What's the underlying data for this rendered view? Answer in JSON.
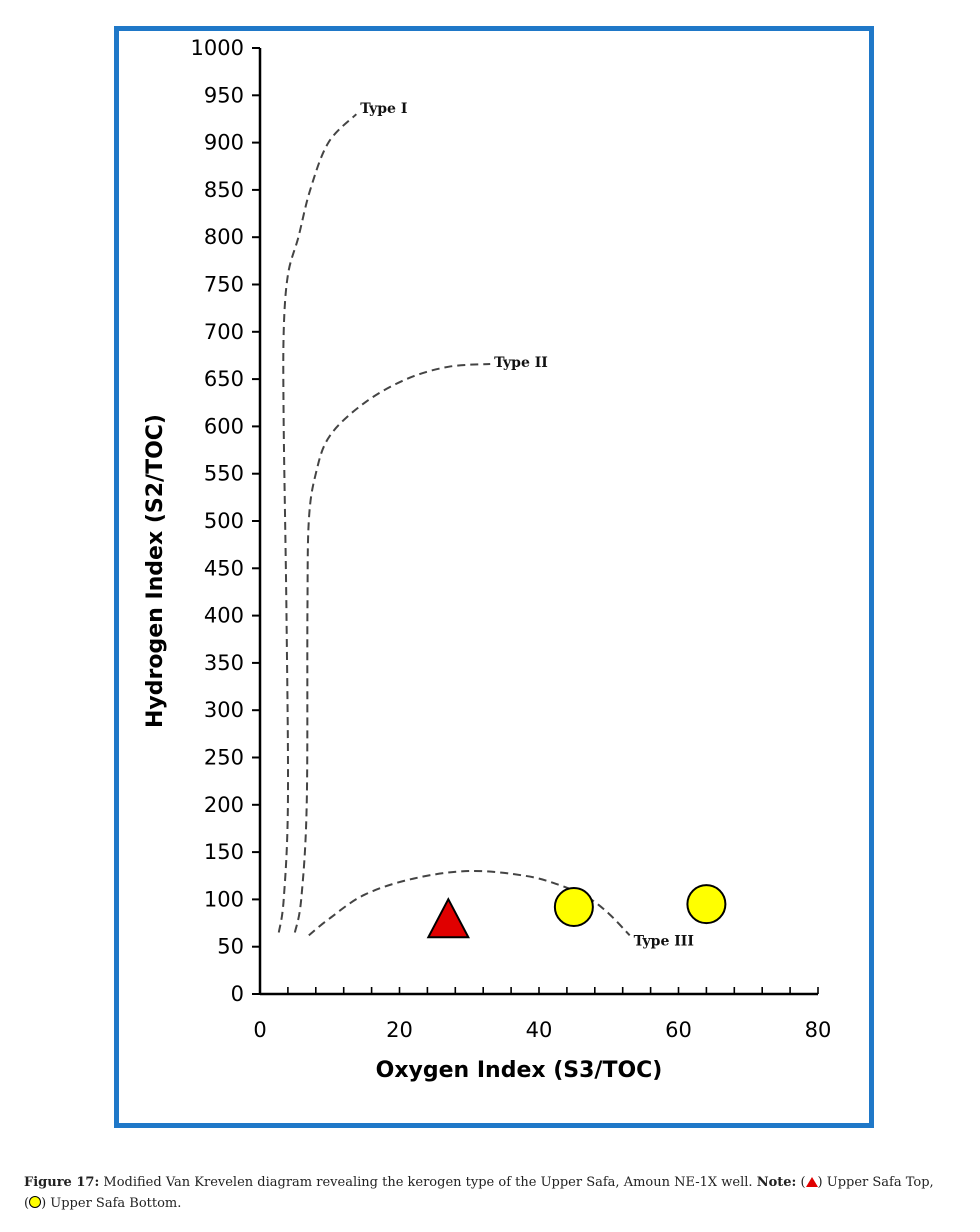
{
  "chart_data": {
    "type": "scatter",
    "xlabel": "Oxygen Index (S3/TOC)",
    "ylabel": "Hydrogen Index (S2/TOC)",
    "xlim": [
      0,
      80
    ],
    "ylim": [
      0,
      1000
    ],
    "x_ticks": [
      0,
      20,
      40,
      60,
      80
    ],
    "y_ticks": [
      0,
      50,
      100,
      150,
      200,
      250,
      300,
      350,
      400,
      450,
      500,
      550,
      600,
      650,
      700,
      750,
      800,
      850,
      900,
      950,
      1000
    ],
    "grid": false,
    "series": [
      {
        "name": "Upper Safa Top",
        "marker": "triangle",
        "color": "#e00000",
        "points": [
          {
            "x": 27,
            "y": 78
          }
        ]
      },
      {
        "name": "Upper Safa Bottom",
        "marker": "circle",
        "color": "#ffff00",
        "points": [
          {
            "x": 45,
            "y": 92
          },
          {
            "x": 64,
            "y": 95
          }
        ]
      }
    ],
    "reference_curves": [
      {
        "label": "Type I",
        "points": [
          [
            2.7,
            65
          ],
          [
            3.4,
            100
          ],
          [
            4.0,
            200
          ],
          [
            3.8,
            400
          ],
          [
            3.4,
            600
          ],
          [
            3.4,
            700
          ],
          [
            4.0,
            760
          ],
          [
            5.5,
            800
          ],
          [
            7.2,
            850
          ],
          [
            9.8,
            900
          ],
          [
            13.8,
            930
          ]
        ]
      },
      {
        "label": "Type II",
        "points": [
          [
            5.0,
            65
          ],
          [
            5.9,
            100
          ],
          [
            6.7,
            200
          ],
          [
            6.8,
            400
          ],
          [
            7.0,
            500
          ],
          [
            8.0,
            550
          ],
          [
            10.0,
            590
          ],
          [
            15.0,
            625
          ],
          [
            21.0,
            650
          ],
          [
            27.0,
            663
          ],
          [
            33.0,
            666
          ]
        ]
      },
      {
        "label": "Type III",
        "points": [
          [
            7.0,
            62
          ],
          [
            10.0,
            80
          ],
          [
            15.0,
            105
          ],
          [
            22.0,
            122
          ],
          [
            30.0,
            130
          ],
          [
            38.0,
            125
          ],
          [
            43.0,
            115
          ],
          [
            47.0,
            102
          ],
          [
            50.0,
            85
          ],
          [
            53.0,
            62
          ]
        ]
      }
    ]
  },
  "caption": {
    "label": "Figure 17:",
    "text": "Modified Van Krevelen diagram revealing the kerogen type of the Upper Safa, Amoun NE-1X well.",
    "note_label": "Note:",
    "legend_top_prefix": "(",
    "legend_top_suffix": ") Upper Safa Top,",
    "legend_bottom_prefix": "(",
    "legend_bottom_suffix": ") Upper Safa Bottom."
  }
}
